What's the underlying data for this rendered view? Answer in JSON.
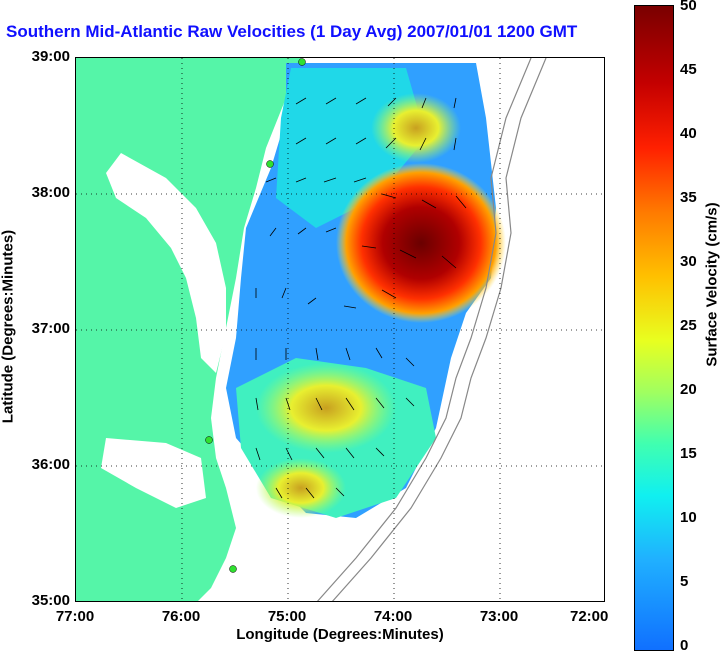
{
  "title": "Southern Mid-Atlantic Raw Velocities (1 Day Avg) 2007/01/01 1200 GMT",
  "axes": {
    "xlabel": "Longitude (Degrees:Minutes)",
    "ylabel": "Latitude (Degrees:Minutes)",
    "xticks": [
      "77:00",
      "76:00",
      "75:00",
      "74:00",
      "73:00",
      "72:00"
    ],
    "yticks": [
      "39:00",
      "38:00",
      "37:00",
      "36:00",
      "35:00"
    ]
  },
  "colorbar": {
    "label": "Surface Velocity (cm/s)",
    "ticks": [
      "50",
      "45",
      "40",
      "35",
      "30",
      "25",
      "20",
      "15",
      "10",
      "5",
      "0"
    ],
    "range": [
      0,
      50
    ]
  },
  "colors": {
    "land": "#55f5a8",
    "title": "#1010ff"
  }
}
